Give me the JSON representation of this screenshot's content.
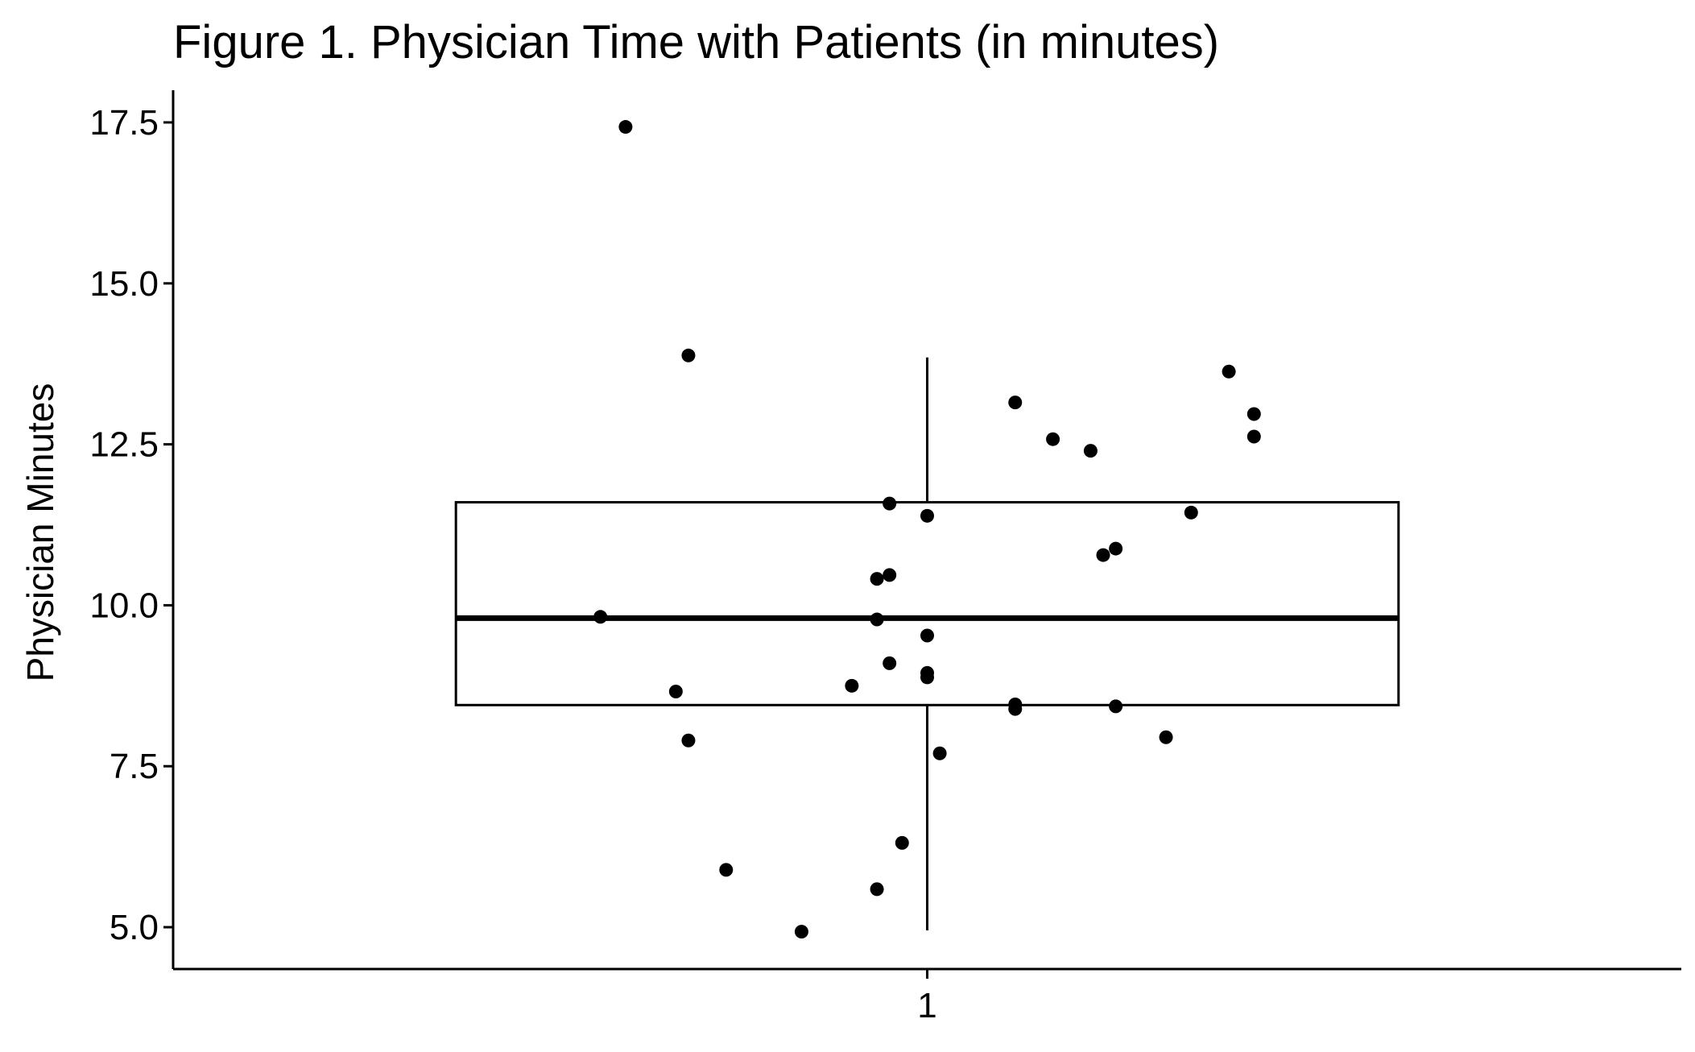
{
  "chart_data": {
    "type": "boxplot",
    "title": "Figure 1. Physician Time with Patients (in minutes)",
    "xlabel": "",
    "ylabel": "Physician Minutes",
    "categories": [
      "1"
    ],
    "ylim": [
      4.35,
      18.0
    ],
    "y_ticks": [
      5.0,
      7.5,
      10.0,
      12.5,
      15.0,
      17.5
    ],
    "y_tick_labels": [
      "5.0",
      "7.5",
      "10.0",
      "12.5",
      "15.0",
      "17.5"
    ],
    "x_tick_labels": [
      "1"
    ],
    "grid": false,
    "legend": "none",
    "box": {
      "category": "1",
      "whisker_low": 4.95,
      "q1": 8.45,
      "median": 9.8,
      "q3": 11.6,
      "whisker_high": 13.85
    },
    "points": [
      {
        "x": 0.76,
        "y": 17.43
      },
      {
        "x": 0.81,
        "y": 13.88
      },
      {
        "x": 1.07,
        "y": 13.15
      },
      {
        "x": 1.24,
        "y": 13.63
      },
      {
        "x": 1.1,
        "y": 12.58
      },
      {
        "x": 1.13,
        "y": 12.4
      },
      {
        "x": 1.26,
        "y": 12.97
      },
      {
        "x": 1.26,
        "y": 12.62
      },
      {
        "x": 0.97,
        "y": 11.58
      },
      {
        "x": 1.0,
        "y": 11.39
      },
      {
        "x": 1.21,
        "y": 11.44
      },
      {
        "x": 1.14,
        "y": 10.78
      },
      {
        "x": 1.15,
        "y": 10.88
      },
      {
        "x": 0.96,
        "y": 10.41
      },
      {
        "x": 0.97,
        "y": 10.47
      },
      {
        "x": 0.74,
        "y": 9.82
      },
      {
        "x": 0.96,
        "y": 9.78
      },
      {
        "x": 1.0,
        "y": 9.53
      },
      {
        "x": 0.97,
        "y": 9.1
      },
      {
        "x": 1.0,
        "y": 8.95
      },
      {
        "x": 1.0,
        "y": 8.88
      },
      {
        "x": 0.94,
        "y": 8.75
      },
      {
        "x": 0.8,
        "y": 8.66
      },
      {
        "x": 1.07,
        "y": 8.46
      },
      {
        "x": 1.07,
        "y": 8.39
      },
      {
        "x": 1.15,
        "y": 8.43
      },
      {
        "x": 0.81,
        "y": 7.9
      },
      {
        "x": 1.19,
        "y": 7.95
      },
      {
        "x": 1.01,
        "y": 7.7
      },
      {
        "x": 0.98,
        "y": 6.31
      },
      {
        "x": 0.84,
        "y": 5.89
      },
      {
        "x": 0.96,
        "y": 5.59
      },
      {
        "x": 0.9,
        "y": 4.93
      }
    ]
  },
  "colors": {
    "axis": "#000000",
    "box_stroke": "#000000",
    "box_fill": "#ffffff",
    "point": "#000000",
    "background": "#ffffff"
  }
}
